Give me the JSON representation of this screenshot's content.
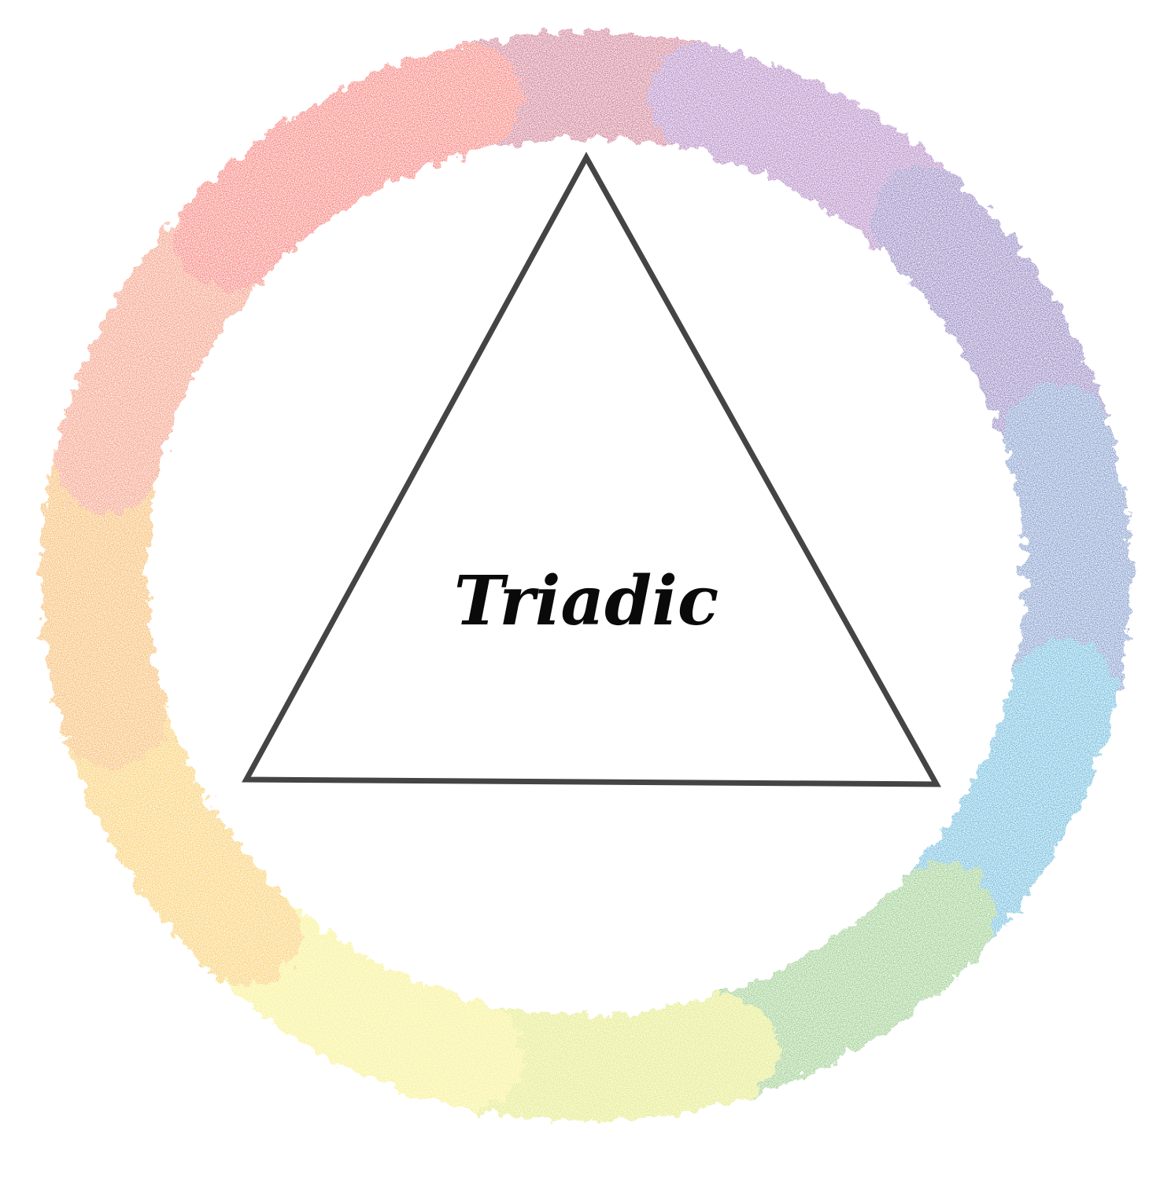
{
  "diagram": {
    "label": "Triadic",
    "wheel_colors": [
      {
        "name": "red-violet",
        "hex": "#b73a5c"
      },
      {
        "name": "violet",
        "hex": "#8a48a6"
      },
      {
        "name": "blue-violet",
        "hex": "#5b44a0"
      },
      {
        "name": "blue",
        "hex": "#3f66b1"
      },
      {
        "name": "blue-green",
        "hex": "#2097cb"
      },
      {
        "name": "green",
        "hex": "#63b14d"
      },
      {
        "name": "yellow-green",
        "hex": "#d5df3a"
      },
      {
        "name": "yellow",
        "hex": "#f3e94a"
      },
      {
        "name": "yellow-orange",
        "hex": "#f6b21f"
      },
      {
        "name": "orange",
        "hex": "#f3951f"
      },
      {
        "name": "red-orange",
        "hex": "#ee6840"
      },
      {
        "name": "red",
        "hex": "#f23b32"
      }
    ],
    "triangle_stroke": "#444444",
    "label_color": "#0a0a0a"
  }
}
